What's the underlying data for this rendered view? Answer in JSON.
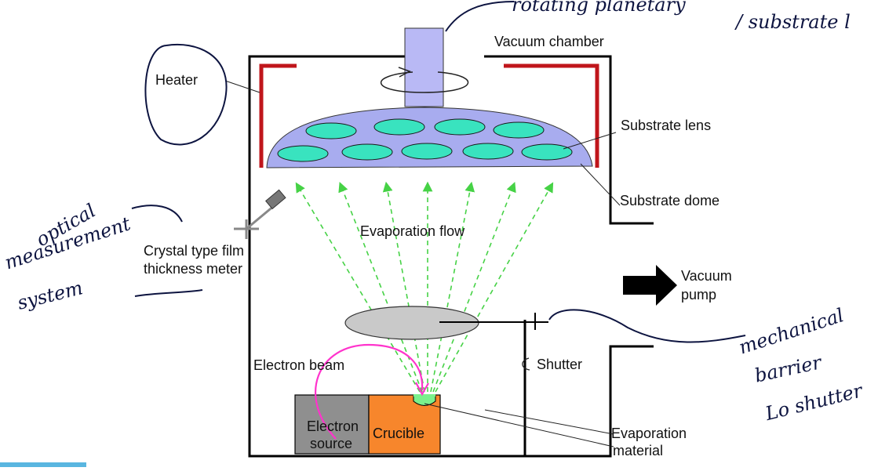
{
  "diagram": {
    "labels": {
      "vacuum_chamber": "Vacuum chamber",
      "heater": "Heater",
      "substrate_lens": "Substrate lens",
      "substrate_dome": "Substrate dome",
      "evaporation_flow": "Evaporation flow",
      "crystal_meter_line1": "Crystal type film",
      "crystal_meter_line2": "thickness meter",
      "vacuum_pump_line1": "Vacuum",
      "vacuum_pump_line2": "pump",
      "electron_beam": "Electron beam",
      "shutter": "Shutter",
      "electron_source_line1": "Electron",
      "electron_source_line2": "source",
      "crucible": "Crucible",
      "evaporation_material_line1": "Evaporation",
      "evaporation_material_line2": "material"
    },
    "handwritten": {
      "top_note": "rotating planetary",
      "top_note_right": "/ substrate l",
      "optical_1": "optical",
      "optical_2": "measurement",
      "optical_3": "system",
      "mech_1": "mechanical",
      "mech_2": "barrier",
      "mech_3": "Lo shutter"
    },
    "colors": {
      "heater": "#c0161b",
      "dome": "#a8acef",
      "lens": "#39e3bf",
      "shaft": "#b9b9f5",
      "crucible": "#f7862c",
      "electron_source": "#8f8f8f",
      "material": "#7af08c",
      "flow": "#46d246",
      "beam": "#ff33cc",
      "shutter": "#c9c9c9",
      "ink": "#0d1440"
    }
  }
}
